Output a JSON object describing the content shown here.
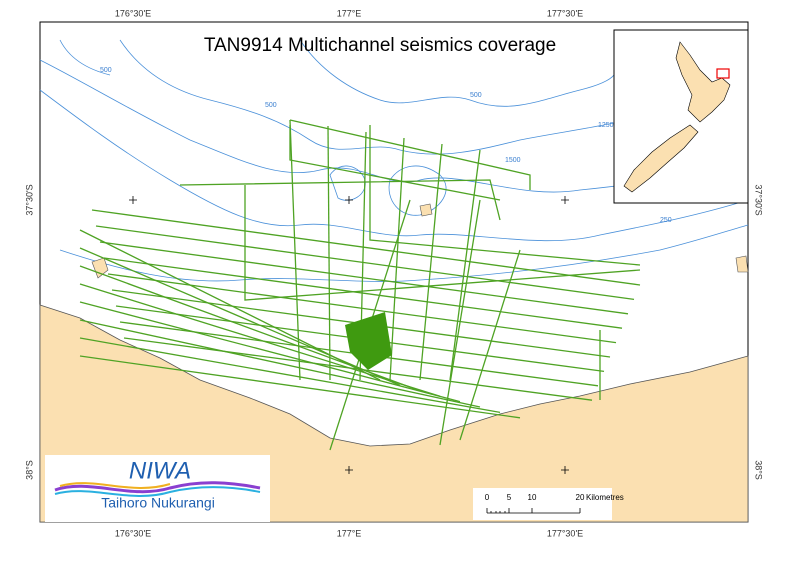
{
  "map": {
    "title": "TAN9914 Multichannel seismics coverage",
    "graticule": {
      "top": [
        "176°30'E",
        "177°E",
        "177°30'E"
      ],
      "bottom": [
        "176°30'E",
        "177°E",
        "177°30'E"
      ],
      "left": [
        "37°30'S",
        "38°S"
      ],
      "right": [
        "37°30'S",
        "38°S"
      ]
    },
    "contour_labels": [
      "500",
      "500",
      "500",
      "1250",
      "1500",
      "250"
    ],
    "scale_bar": {
      "labels": [
        "0",
        "5",
        "10",
        "20"
      ],
      "unit": "Kilometres"
    },
    "logo": {
      "name": "NIWA",
      "subtitle": "Taihoro Nukurangi"
    }
  }
}
